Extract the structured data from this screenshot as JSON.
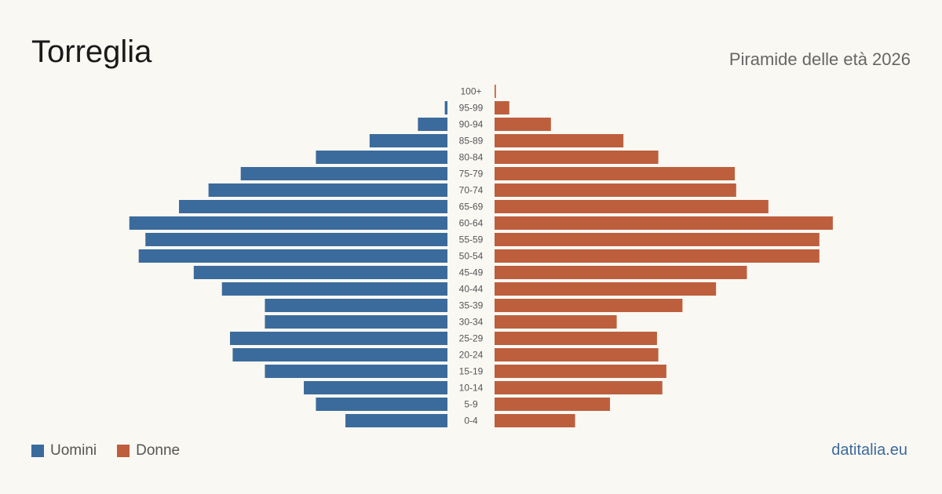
{
  "title": "Torreglia",
  "subtitle": "Piramide delle età 2026",
  "source": "datitalia.eu",
  "colors": {
    "men": "#3b6b9c",
    "women": "#bd5f3d",
    "background": "#faf8f3"
  },
  "chart_data": {
    "type": "bar",
    "orientation": "horizontal-pyramid",
    "categories": [
      "100+",
      "95-99",
      "90-94",
      "85-89",
      "80-84",
      "75-79",
      "70-74",
      "65-69",
      "60-64",
      "55-59",
      "50-54",
      "45-49",
      "40-44",
      "35-39",
      "30-34",
      "25-29",
      "20-24",
      "15-19",
      "10-14",
      "5-9",
      "0-4"
    ],
    "series": [
      {
        "name": "Uomini",
        "values": [
          0,
          2,
          22,
          58,
          98,
          154,
          178,
          200,
          237,
          225,
          230,
          189,
          168,
          136,
          136,
          162,
          160,
          136,
          107,
          98,
          76
        ]
      },
      {
        "name": "Donne",
        "values": [
          1,
          11,
          42,
          96,
          122,
          179,
          180,
          204,
          252,
          242,
          242,
          188,
          165,
          140,
          91,
          121,
          122,
          128,
          125,
          86,
          60
        ]
      }
    ],
    "legend": "bottom-left",
    "grid": false
  }
}
